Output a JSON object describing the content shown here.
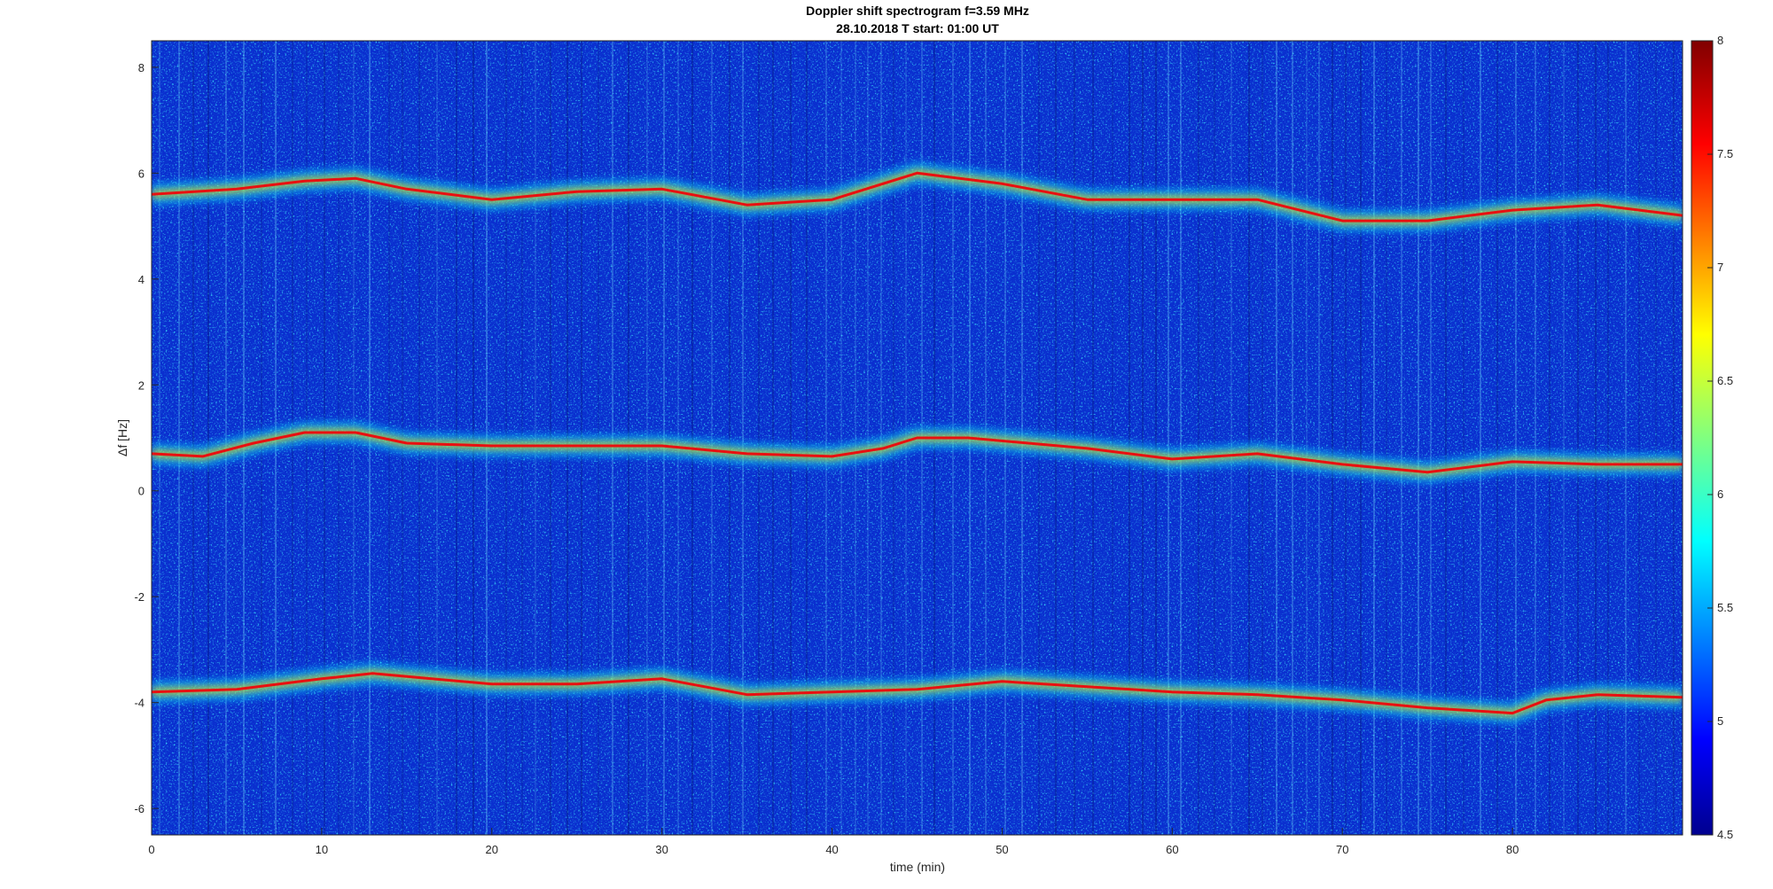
{
  "chart_data": {
    "type": "heatmap",
    "title": "Doppler shift spectrogram f=3.59 MHz",
    "subtitle": "28.10.2018   T start: 01:00 UT",
    "xlabel": "time (min)",
    "ylabel": "Δf [Hz]",
    "xlim": [
      0,
      90
    ],
    "ylim": [
      -6.5,
      8.5
    ],
    "x_ticks": [
      "0",
      "10",
      "20",
      "30",
      "40",
      "50",
      "60",
      "70",
      "80"
    ],
    "y_ticks": [
      "-6",
      "-4",
      "-2",
      "0",
      "2",
      "4",
      "6",
      "8"
    ],
    "colorbar": {
      "colormap": "jet",
      "range": [
        4.5,
        8
      ],
      "ticks": [
        "4.5",
        "5",
        "5.5",
        "6",
        "6.5",
        "7",
        "7.5",
        "8"
      ]
    },
    "grid": false,
    "series": [
      {
        "x": [
          0,
          5,
          9,
          12,
          15,
          20,
          25,
          30,
          35,
          40,
          45,
          50,
          55,
          60,
          65,
          70,
          75,
          80,
          85,
          90
        ],
        "y": [
          5.6,
          5.7,
          5.85,
          5.9,
          5.7,
          5.5,
          5.65,
          5.7,
          5.4,
          5.5,
          6.0,
          5.8,
          5.5,
          5.5,
          5.5,
          5.1,
          5.1,
          5.3,
          5.4,
          5.2
        ]
      },
      {
        "x": [
          0,
          3,
          6,
          9,
          12,
          15,
          20,
          25,
          30,
          35,
          40,
          43,
          45,
          48,
          55,
          60,
          65,
          70,
          75,
          80,
          85,
          90
        ],
        "y": [
          0.7,
          0.65,
          0.9,
          1.1,
          1.1,
          0.9,
          0.85,
          0.85,
          0.85,
          0.7,
          0.65,
          0.8,
          1.0,
          1.0,
          0.8,
          0.6,
          0.7,
          0.5,
          0.35,
          0.55,
          0.5,
          0.5
        ]
      },
      {
        "x": [
          0,
          5,
          10,
          13,
          20,
          25,
          30,
          35,
          40,
          45,
          50,
          55,
          60,
          65,
          70,
          75,
          80,
          82,
          85,
          90
        ],
        "y": [
          -3.8,
          -3.75,
          -3.55,
          -3.45,
          -3.65,
          -3.65,
          -3.55,
          -3.85,
          -3.8,
          -3.75,
          -3.6,
          -3.7,
          -3.8,
          -3.85,
          -3.95,
          -4.1,
          -4.2,
          -3.95,
          -3.85,
          -3.9
        ]
      }
    ]
  }
}
